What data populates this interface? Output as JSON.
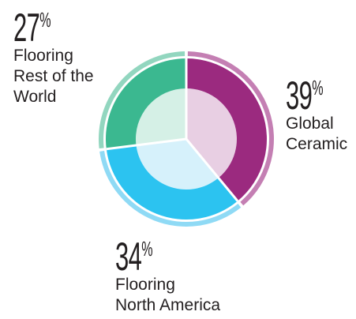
{
  "chart_data": {
    "type": "pie",
    "style": "donut with outer ring",
    "categories": [
      "Global Ceramic",
      "Flooring North America",
      "Flooring Rest of the World"
    ],
    "values": [
      39,
      34,
      27
    ],
    "unit": "%",
    "slices": [
      {
        "name": "Global Ceramic",
        "value": 39,
        "value_label": "39",
        "label": "Global\nCeramic",
        "color": "#9b2a7f",
        "ring_color": "#c47fb3",
        "inner_color": "#e8cfe3"
      },
      {
        "name": "Flooring North America",
        "value": 34,
        "value_label": "34",
        "label": "Flooring\nNorth America",
        "color": "#2cc3f0",
        "ring_color": "#8fdaf5",
        "inner_color": "#d6f1fb"
      },
      {
        "name": "Flooring Rest of the World",
        "value": 27,
        "value_label": "27",
        "label": "Flooring\nRest of the\nWorld",
        "color": "#3bb890",
        "ring_color": "#92d6bf",
        "inner_color": "#d5f0e6"
      }
    ],
    "percent_sign": "%"
  }
}
